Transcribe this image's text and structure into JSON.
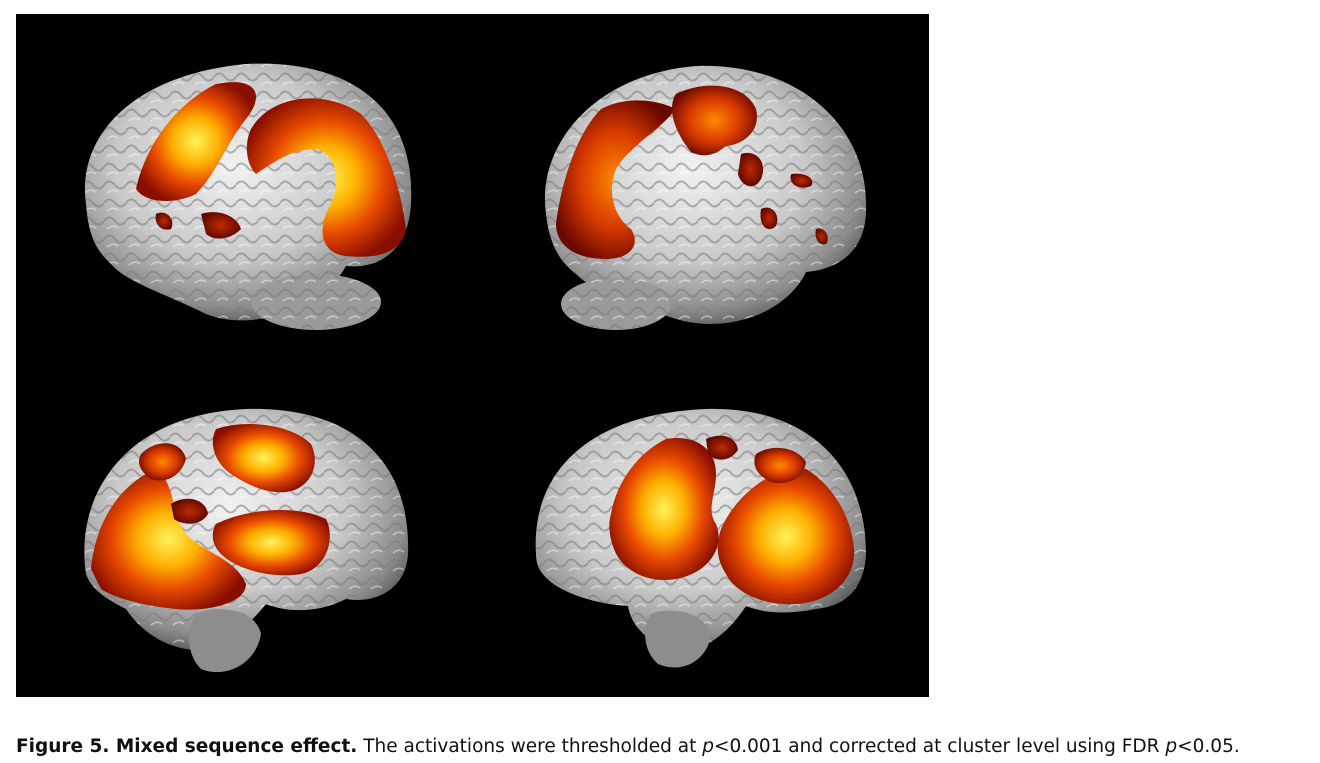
{
  "figure": {
    "colors": {
      "background": "#000000",
      "brain_light": "#e8e8e8",
      "brain_shadow": "#5a5a5a",
      "activation_low": "#7a0a00",
      "activation_mid": "#e84a00",
      "activation_high": "#fff35a"
    },
    "panels": [
      "left lateral view",
      "right lateral view",
      "left medial view",
      "right medial view"
    ]
  },
  "caption": {
    "label": "Figure 5. Mixed sequence effect.",
    "text_1": " The activations were thresholded at ",
    "p1": "p",
    "text_2": "<0.001 and corrected at cluster level using FDR ",
    "p2": "p",
    "text_3": "<0.05."
  }
}
